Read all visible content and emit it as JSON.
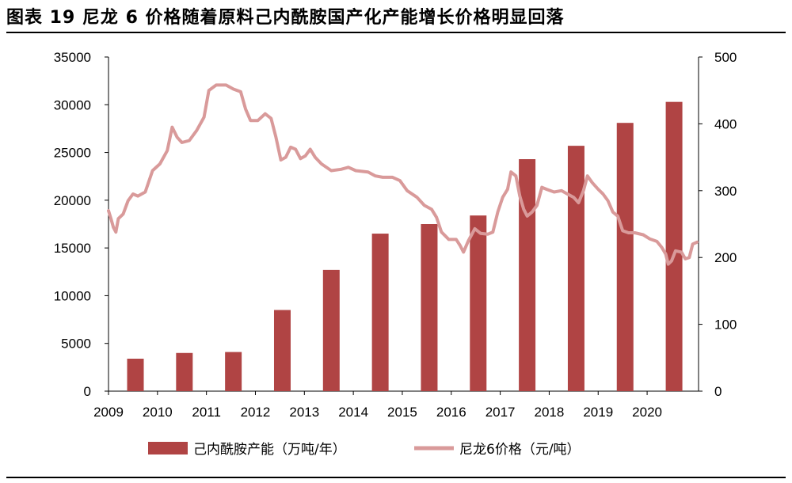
{
  "header": {
    "title": "图表 19  尼龙 6 价格随着原料己内酰胺国产化产能增长价格明显回落"
  },
  "chart_data": {
    "type": "bar+line",
    "left_axis": {
      "ylim": [
        0,
        35000
      ],
      "ticks": [
        "0",
        "5000",
        "10000",
        "15000",
        "20000",
        "25000",
        "30000",
        "35000"
      ]
    },
    "right_axis": {
      "ylim": [
        0,
        500
      ],
      "ticks": [
        "0",
        "100",
        "200",
        "300",
        "400",
        "500"
      ]
    },
    "x_axis": {
      "ticks": [
        "2009",
        "2010",
        "2011",
        "2012",
        "2013",
        "2014",
        "2015",
        "2016",
        "2017",
        "2018",
        "2019",
        "2020"
      ]
    },
    "bar_series": {
      "name": "己内酰胺产能（万吨/年）",
      "color": "#b04444",
      "x": [
        2009.55,
        2010.55,
        2011.55,
        2012.55,
        2013.55,
        2014.55,
        2015.55,
        2016.55,
        2017.55,
        2018.55,
        2019.55,
        2020.55
      ],
      "values": [
        3400,
        4000,
        4100,
        8500,
        12700,
        16500,
        17500,
        18400,
        24300,
        25700,
        28100,
        30300
      ]
    },
    "line_series": {
      "name": "尼龙6价格（元/吨）",
      "color": "#d99a9a",
      "points": [
        [
          2009.0,
          270
        ],
        [
          2009.05,
          258
        ],
        [
          2009.1,
          245
        ],
        [
          2009.15,
          238
        ],
        [
          2009.2,
          258
        ],
        [
          2009.3,
          265
        ],
        [
          2009.4,
          285
        ],
        [
          2009.5,
          295
        ],
        [
          2009.6,
          292
        ],
        [
          2009.75,
          298
        ],
        [
          2009.9,
          330
        ],
        [
          2010.05,
          340
        ],
        [
          2010.2,
          360
        ],
        [
          2010.3,
          395
        ],
        [
          2010.4,
          380
        ],
        [
          2010.5,
          372
        ],
        [
          2010.65,
          375
        ],
        [
          2010.8,
          390
        ],
        [
          2010.95,
          410
        ],
        [
          2011.05,
          450
        ],
        [
          2011.2,
          458
        ],
        [
          2011.4,
          458
        ],
        [
          2011.55,
          452
        ],
        [
          2011.7,
          448
        ],
        [
          2011.8,
          422
        ],
        [
          2011.9,
          405
        ],
        [
          2012.05,
          405
        ],
        [
          2012.2,
          415
        ],
        [
          2012.32,
          408
        ],
        [
          2012.42,
          380
        ],
        [
          2012.52,
          346
        ],
        [
          2012.62,
          350
        ],
        [
          2012.72,
          365
        ],
        [
          2012.82,
          362
        ],
        [
          2012.92,
          348
        ],
        [
          2013.02,
          352
        ],
        [
          2013.12,
          362
        ],
        [
          2013.22,
          350
        ],
        [
          2013.35,
          340
        ],
        [
          2013.55,
          330
        ],
        [
          2013.75,
          332
        ],
        [
          2013.9,
          335
        ],
        [
          2014.05,
          330
        ],
        [
          2014.3,
          328
        ],
        [
          2014.45,
          322
        ],
        [
          2014.6,
          320
        ],
        [
          2014.8,
          320
        ],
        [
          2014.95,
          315
        ],
        [
          2015.1,
          300
        ],
        [
          2015.3,
          290
        ],
        [
          2015.45,
          278
        ],
        [
          2015.6,
          272
        ],
        [
          2015.7,
          260
        ],
        [
          2015.8,
          238
        ],
        [
          2015.95,
          227
        ],
        [
          2016.1,
          227
        ],
        [
          2016.18,
          218
        ],
        [
          2016.25,
          208
        ],
        [
          2016.35,
          225
        ],
        [
          2016.48,
          243
        ],
        [
          2016.6,
          236
        ],
        [
          2016.75,
          235
        ],
        [
          2016.85,
          238
        ],
        [
          2016.95,
          268
        ],
        [
          2017.05,
          290
        ],
        [
          2017.15,
          302
        ],
        [
          2017.22,
          328
        ],
        [
          2017.32,
          322
        ],
        [
          2017.4,
          292
        ],
        [
          2017.48,
          272
        ],
        [
          2017.55,
          262
        ],
        [
          2017.65,
          268
        ],
        [
          2017.75,
          278
        ],
        [
          2017.85,
          305
        ],
        [
          2017.95,
          302
        ],
        [
          2018.1,
          298
        ],
        [
          2018.25,
          300
        ],
        [
          2018.35,
          296
        ],
        [
          2018.5,
          290
        ],
        [
          2018.6,
          282
        ],
        [
          2018.7,
          300
        ],
        [
          2018.78,
          322
        ],
        [
          2018.88,
          312
        ],
        [
          2019.0,
          302
        ],
        [
          2019.1,
          295
        ],
        [
          2019.2,
          285
        ],
        [
          2019.3,
          268
        ],
        [
          2019.4,
          262
        ],
        [
          2019.5,
          240
        ],
        [
          2019.62,
          237
        ],
        [
          2019.75,
          237
        ],
        [
          2019.92,
          234
        ],
        [
          2020.05,
          228
        ],
        [
          2020.2,
          224
        ],
        [
          2020.3,
          215
        ],
        [
          2020.38,
          205
        ],
        [
          2020.43,
          190
        ],
        [
          2020.5,
          195
        ],
        [
          2020.58,
          210
        ],
        [
          2020.7,
          208
        ],
        [
          2020.78,
          198
        ],
        [
          2020.86,
          200
        ],
        [
          2020.93,
          220
        ],
        [
          2021.02,
          223
        ]
      ]
    },
    "legend": {
      "placement": "bottom",
      "items": [
        {
          "label": "己内酰胺产能（万吨/年）",
          "kind": "bar",
          "color": "#b04444"
        },
        {
          "label": "尼龙6价格（元/吨）",
          "kind": "line",
          "color": "#d99a9a"
        }
      ]
    },
    "grid": false
  }
}
